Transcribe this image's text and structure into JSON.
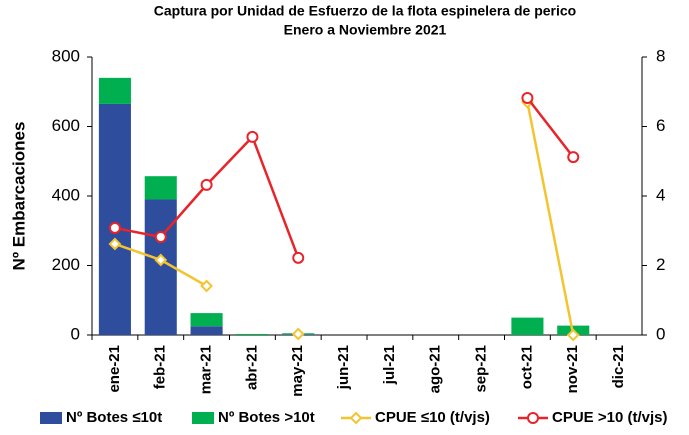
{
  "chart_data": {
    "type": "bar",
    "stacked": true,
    "title": "Captura por Unidad de Esfuerzo de la flota espinelera de perico",
    "subtitle": "Enero a Noviembre 2021",
    "y_label": "Nº Embarcaciones",
    "categories": [
      "ene-21",
      "feb-21",
      "mar-21",
      "abr-21",
      "may-21",
      "jun-21",
      "jul-21",
      "ago-21",
      "sep-21",
      "oct-21",
      "nov-21",
      "dic-21"
    ],
    "series": [
      {
        "name": "Nº Botes ≤10t",
        "type": "bar",
        "color": "#2e4d9c",
        "values": [
          665,
          390,
          25,
          0,
          2,
          0,
          0,
          0,
          0,
          0,
          0,
          0
        ]
      },
      {
        "name": "Nº Botes >10t",
        "type": "bar",
        "color": "#00b050",
        "values": [
          75,
          67,
          38,
          3,
          3,
          0,
          0,
          0,
          0,
          50,
          27,
          0
        ]
      },
      {
        "name": "CPUE ≤10 (t/vjs)",
        "type": "line",
        "marker": "diamond",
        "axis": "y2",
        "color": "#f4c430",
        "values": [
          2.62,
          2.16,
          1.41,
          null,
          0.03,
          null,
          null,
          null,
          null,
          6.7,
          0,
          null
        ]
      },
      {
        "name": "CPUE >10 (t/vjs)",
        "type": "line",
        "marker": "circle",
        "axis": "y2",
        "color": "#e8242a",
        "values": [
          3.08,
          2.82,
          4.32,
          5.7,
          2.22,
          null,
          null,
          null,
          null,
          6.82,
          5.12,
          null
        ]
      }
    ],
    "ylim": [
      0,
      800
    ],
    "yticks": [
      0,
      200,
      400,
      600,
      800
    ],
    "y2lim": [
      0,
      8
    ],
    "y2ticks": [
      0,
      2,
      4,
      6,
      8
    ],
    "legend": "bottom"
  }
}
